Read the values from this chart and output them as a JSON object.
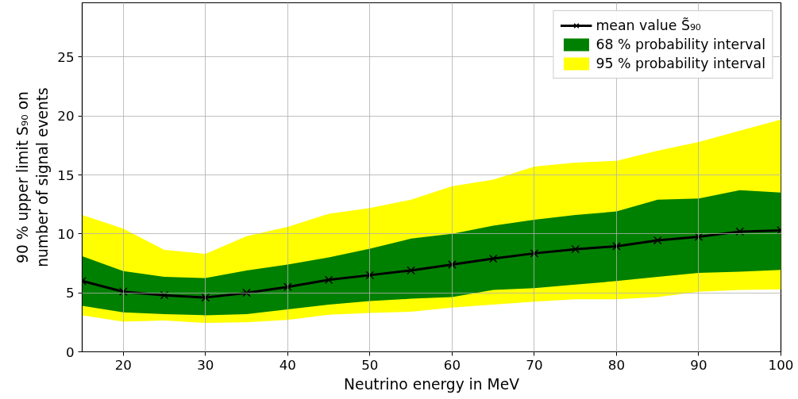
{
  "chart_data": {
    "type": "line",
    "xlabel": "Neutrino energy in MeV",
    "ylabel": "90 % upper limit S₉₀ on\nnumber of signal events",
    "x": [
      15,
      20,
      25,
      30,
      35,
      40,
      45,
      50,
      55,
      60,
      65,
      70,
      75,
      80,
      85,
      90,
      95,
      100
    ],
    "series": [
      {
        "name": "mean value S̃₉₀",
        "color": "#000000",
        "marker": "cross",
        "values": [
          6.0,
          5.1,
          4.8,
          4.6,
          5.0,
          5.5,
          6.1,
          6.5,
          6.9,
          7.4,
          7.9,
          8.35,
          8.7,
          8.95,
          9.45,
          9.75,
          10.2,
          10.3
        ]
      },
      {
        "name": "68 % probability interval",
        "type": "area",
        "color": "#008000",
        "lower": [
          3.9,
          3.35,
          3.2,
          3.1,
          3.2,
          3.6,
          4.0,
          4.3,
          4.5,
          4.65,
          5.25,
          5.4,
          5.7,
          6.0,
          6.35,
          6.7,
          6.8,
          6.95
        ],
        "values": [
          null,
          null,
          null,
          null,
          null,
          null,
          null,
          null,
          null,
          null,
          null,
          null,
          null,
          null,
          null,
          null,
          null,
          null
        ],
        "upper": [
          8.1,
          6.85,
          6.35,
          6.25,
          6.9,
          7.4,
          8.0,
          8.75,
          9.6,
          10.0,
          10.7,
          11.2,
          11.6,
          11.9,
          12.9,
          13.0,
          13.7,
          13.5
        ]
      },
      {
        "name": "95 % probability interval",
        "type": "area",
        "color": "#ffff00",
        "lower": [
          3.1,
          2.55,
          2.65,
          2.45,
          2.5,
          2.7,
          3.15,
          3.3,
          3.4,
          3.75,
          4.0,
          4.25,
          4.45,
          4.45,
          4.65,
          5.1,
          5.25,
          5.3
        ],
        "values": [
          null,
          null,
          null,
          null,
          null,
          null,
          null,
          null,
          null,
          null,
          null,
          null,
          null,
          null,
          null,
          null,
          null,
          null
        ],
        "upper": [
          11.6,
          10.45,
          8.65,
          8.3,
          9.8,
          10.6,
          11.7,
          12.2,
          12.9,
          14.05,
          14.6,
          15.7,
          16.05,
          16.2,
          17.05,
          17.8,
          18.75,
          19.7
        ]
      }
    ],
    "xlim": [
      15,
      100
    ],
    "xticks": [
      20,
      30,
      40,
      50,
      60,
      70,
      80,
      90,
      100
    ],
    "ylim": [
      0,
      29.6
    ],
    "yticks": [
      0,
      5,
      10,
      15,
      20,
      25
    ],
    "grid": true,
    "legend": "top right"
  }
}
